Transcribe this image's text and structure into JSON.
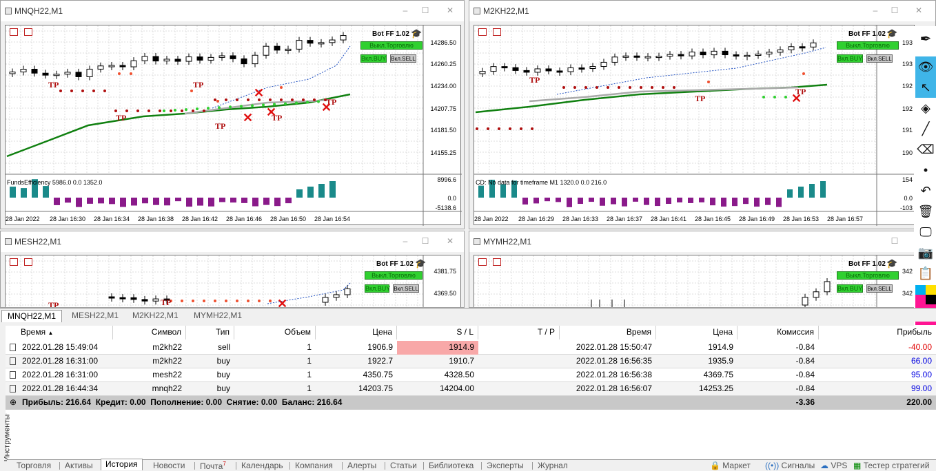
{
  "windows": [
    {
      "title": "MNQH22,M1",
      "bot": "Bot FF 1.02",
      "btn_off": "Выкл.Торговлю",
      "btn_buy": "Вкл.BUY",
      "btn_sell": "Вкл.SELL",
      "prices": [
        "14286.50",
        "14260.25",
        "14234.00",
        "14207.75",
        "14181.50",
        "14155.25"
      ],
      "indicator": "FundsEfficiency 5986.0 0.0 1352.0",
      "ind_scale": [
        "8996.6",
        "0.0",
        "-5138.6"
      ],
      "times": [
        "28 Jan 2022",
        "28 Jan 16:30",
        "28 Jan 16:34",
        "28 Jan 16:38",
        "28 Jan 16:42",
        "28 Jan 16:46",
        "28 Jan 16:50",
        "28 Jan 16:54"
      ]
    },
    {
      "title": "M2KH22,M1",
      "bot": "Bot FF 1.02",
      "btn_off": "Выкл.Торговлю",
      "btn_buy": "Вкл.BUY",
      "btn_sell": "Вкл.SELL",
      "prices": [
        "193",
        "193",
        "192",
        "192",
        "191",
        "190"
      ],
      "indicator": "CD: No data for timeframe M1 1320.0 0.0 216.0",
      "ind_scale": [
        "154",
        "0.0",
        "-103"
      ],
      "times": [
        "28 Jan 2022",
        "28 Jan 16:29",
        "28 Jan 16:33",
        "28 Jan 16:37",
        "28 Jan 16:41",
        "28 Jan 16:45",
        "28 Jan 16:49",
        "28 Jan 16:53",
        "28 Jan 16:57"
      ]
    },
    {
      "title": "MESH22,M1",
      "bot": "Bot FF 1.02",
      "btn_off": "Выкл.Торговлю",
      "btn_buy": "Вкл.BUY",
      "btn_sell": "Вкл.SELL",
      "prices": [
        "4381.75",
        "4369.50"
      ]
    },
    {
      "title": "MYMH22,M1",
      "bot": "Bot FF 1.02",
      "btn_off": "Выкл.Торговлю",
      "btn_buy": "Вкл.BUY",
      "btn_sell": "Вкл.SELL",
      "prices": [
        "342",
        "342"
      ]
    }
  ],
  "tp_label": "TP",
  "chart_tabs": [
    "MNQH22,M1",
    "MESH22,M1",
    "M2KH22,M1",
    "MYMH22,M1"
  ],
  "table": {
    "headers": [
      "Время",
      "Символ",
      "Тип",
      "Объем",
      "Цена",
      "S / L",
      "T / P",
      "Время",
      "Цена",
      "Комиссия",
      "Прибыль"
    ],
    "rows": [
      {
        "open_time": "2022.01.28 15:49:04",
        "symbol": "m2kh22",
        "type": "sell",
        "volume": "1",
        "price": "1906.9",
        "sl": "1914.9",
        "tp": "",
        "close_time": "2022.01.28 15:50:47",
        "close_price": "1914.9",
        "commission": "-0.84",
        "profit": "-40.00"
      },
      {
        "open_time": "2022.01.28 16:31:00",
        "symbol": "m2kh22",
        "type": "buy",
        "volume": "1",
        "price": "1922.7",
        "sl": "1910.7",
        "tp": "",
        "close_time": "2022.01.28 16:56:35",
        "close_price": "1935.9",
        "commission": "-0.84",
        "profit": "66.00"
      },
      {
        "open_time": "2022.01.28 16:31:00",
        "symbol": "mesh22",
        "type": "buy",
        "volume": "1",
        "price": "4350.75",
        "sl": "4328.50",
        "tp": "",
        "close_time": "2022.01.28 16:56:38",
        "close_price": "4369.75",
        "commission": "-0.84",
        "profit": "95.00"
      },
      {
        "open_time": "2022.01.28 16:44:34",
        "symbol": "mnqh22",
        "type": "buy",
        "volume": "1",
        "price": "14203.75",
        "sl": "14204.00",
        "tp": "",
        "close_time": "2022.01.28 16:56:07",
        "close_price": "14253.25",
        "commission": "-0.84",
        "profit": "99.00"
      }
    ],
    "summary": {
      "text": "Прибыль: 216.64  Кредит: 0.00  Пополнение: 0.00  Снятие: 0.00  Баланс: 216.64",
      "commission": "-3.36",
      "profit": "220.00"
    }
  },
  "side_label": "Инструменты",
  "bottom_tabs": [
    "Торговля",
    "Активы",
    "История",
    "Новости",
    "Почта",
    "Календарь",
    "Компания",
    "Алерты",
    "Статьи",
    "Библиотека",
    "Эксперты",
    "Журнал"
  ],
  "mail_badge": "7",
  "right_tabs": [
    "Маркет",
    "Сигналы",
    "VPS",
    "Тестер стратегий"
  ]
}
